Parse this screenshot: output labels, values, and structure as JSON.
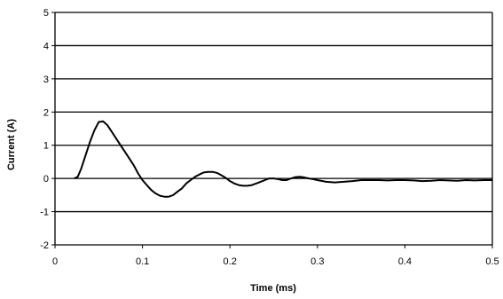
{
  "chart_data": {
    "type": "line",
    "title": "",
    "xlabel": "Time (ms)",
    "ylabel": "Current (A)",
    "xlim": [
      0,
      0.5
    ],
    "ylim": [
      -2,
      5
    ],
    "x_ticks": [
      "0",
      "0.1",
      "0.2",
      "0.3",
      "0.4",
      "0.5"
    ],
    "y_ticks": [
      "-2",
      "-1",
      "0",
      "1",
      "2",
      "3",
      "4",
      "5"
    ],
    "grid": "horizontal",
    "legend": "none",
    "line_color": "#000000",
    "series": [
      {
        "x": [
          0.022,
          0.026,
          0.03,
          0.035,
          0.04,
          0.045,
          0.05,
          0.055,
          0.06,
          0.065,
          0.07,
          0.075,
          0.08,
          0.085,
          0.09,
          0.095,
          0.1,
          0.105,
          0.11,
          0.115,
          0.12,
          0.125,
          0.13,
          0.135,
          0.14,
          0.145,
          0.15,
          0.155,
          0.16,
          0.165,
          0.17,
          0.175,
          0.18,
          0.185,
          0.19,
          0.195,
          0.2,
          0.205,
          0.21,
          0.215,
          0.22,
          0.225,
          0.23,
          0.235,
          0.24,
          0.245,
          0.25,
          0.255,
          0.26,
          0.265,
          0.27,
          0.275,
          0.28,
          0.285,
          0.29,
          0.295,
          0.3,
          0.31,
          0.32,
          0.33,
          0.34,
          0.35,
          0.36,
          0.37,
          0.38,
          0.39,
          0.4,
          0.41,
          0.42,
          0.43,
          0.44,
          0.45,
          0.46,
          0.47,
          0.48,
          0.49,
          0.5
        ],
        "values": [
          0.0,
          0.05,
          0.3,
          0.7,
          1.1,
          1.45,
          1.7,
          1.72,
          1.6,
          1.4,
          1.2,
          1.0,
          0.8,
          0.6,
          0.4,
          0.15,
          -0.05,
          -0.2,
          -0.35,
          -0.45,
          -0.52,
          -0.55,
          -0.55,
          -0.5,
          -0.4,
          -0.3,
          -0.15,
          -0.05,
          0.05,
          0.12,
          0.18,
          0.2,
          0.2,
          0.17,
          0.1,
          0.02,
          -0.08,
          -0.15,
          -0.2,
          -0.22,
          -0.22,
          -0.2,
          -0.15,
          -0.1,
          -0.05,
          0.0,
          0.0,
          -0.02,
          -0.05,
          -0.05,
          0.0,
          0.04,
          0.05,
          0.03,
          0.0,
          -0.02,
          -0.05,
          -0.1,
          -0.12,
          -0.1,
          -0.08,
          -0.05,
          -0.05,
          -0.05,
          -0.06,
          -0.05,
          -0.05,
          -0.06,
          -0.08,
          -0.07,
          -0.05,
          -0.06,
          -0.07,
          -0.05,
          -0.06,
          -0.05,
          -0.05
        ]
      }
    ]
  }
}
